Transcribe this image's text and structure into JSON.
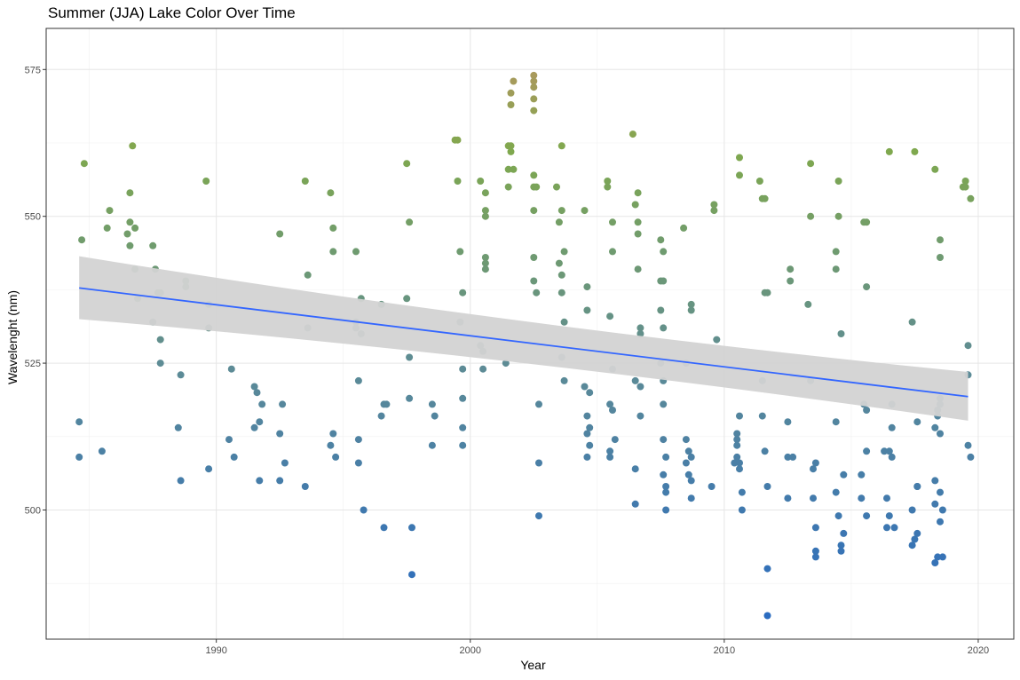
{
  "chart_data": {
    "type": "scatter",
    "title": "Summer (JJA) Lake Color Over Time",
    "xlabel": "Year",
    "ylabel": "Wavelenght (nm)",
    "xlim": [
      1983.3,
      2021.4
    ],
    "ylim": [
      478,
      582
    ],
    "x_ticks": [
      1990,
      2000,
      2010,
      2020
    ],
    "y_ticks": [
      500,
      525,
      550,
      575
    ],
    "grid": true,
    "trend": {
      "method": "linear",
      "x": [
        1984.6,
        2019.6
      ],
      "y": [
        537.8,
        519.3
      ],
      "ci_lower": [
        532.5,
        515.2
      ],
      "ci_upper": [
        543.2,
        523.5
      ],
      "line_color": "#3366FF",
      "band_color": "#D3D3D3"
    },
    "color_scale": {
      "low_value": 482,
      "low_color": "#2B6CC0",
      "mid_value": 525,
      "mid_color": "#5E8C95",
      "high_value": 561,
      "high_color": "#7FA84E",
      "top_value": 574,
      "top_color": "#A89A5C"
    },
    "points": [
      [
        1984.6,
        509
      ],
      [
        1984.6,
        515
      ],
      [
        1984.7,
        546
      ],
      [
        1984.8,
        559
      ],
      [
        1985.5,
        510
      ],
      [
        1985.7,
        548
      ],
      [
        1985.8,
        551
      ],
      [
        1986.5,
        547
      ],
      [
        1986.6,
        545
      ],
      [
        1986.6,
        549
      ],
      [
        1986.6,
        554
      ],
      [
        1986.7,
        562
      ],
      [
        1986.8,
        548
      ],
      [
        1986.8,
        541
      ],
      [
        1986.9,
        536
      ],
      [
        1987.5,
        532
      ],
      [
        1987.5,
        545
      ],
      [
        1987.6,
        541
      ],
      [
        1987.7,
        537
      ],
      [
        1987.8,
        537
      ],
      [
        1987.8,
        525
      ],
      [
        1987.8,
        529
      ],
      [
        1988.5,
        514
      ],
      [
        1988.6,
        505
      ],
      [
        1988.6,
        523
      ],
      [
        1988.8,
        539
      ],
      [
        1988.8,
        538
      ],
      [
        1989.6,
        556
      ],
      [
        1989.7,
        535
      ],
      [
        1989.7,
        531
      ],
      [
        1989.7,
        507
      ],
      [
        1990.5,
        512
      ],
      [
        1990.6,
        524
      ],
      [
        1990.7,
        509
      ],
      [
        1991.5,
        514
      ],
      [
        1991.5,
        521
      ],
      [
        1991.6,
        520
      ],
      [
        1991.7,
        505
      ],
      [
        1991.7,
        515
      ],
      [
        1991.8,
        518
      ],
      [
        1992.5,
        547
      ],
      [
        1992.5,
        513
      ],
      [
        1992.5,
        505
      ],
      [
        1992.6,
        518
      ],
      [
        1992.7,
        508
      ],
      [
        1993.5,
        556
      ],
      [
        1993.5,
        504
      ],
      [
        1993.6,
        531
      ],
      [
        1993.6,
        540
      ],
      [
        1994.5,
        554
      ],
      [
        1994.5,
        511
      ],
      [
        1994.6,
        544
      ],
      [
        1994.6,
        548
      ],
      [
        1994.6,
        513
      ],
      [
        1994.7,
        509
      ],
      [
        1995.5,
        544
      ],
      [
        1995.5,
        532
      ],
      [
        1995.5,
        531
      ],
      [
        1995.6,
        512
      ],
      [
        1995.6,
        508
      ],
      [
        1995.6,
        522
      ],
      [
        1995.7,
        530
      ],
      [
        1995.7,
        536
      ],
      [
        1995.8,
        500
      ],
      [
        1996.5,
        535
      ],
      [
        1996.5,
        516
      ],
      [
        1996.6,
        518
      ],
      [
        1996.6,
        497
      ],
      [
        1996.7,
        518
      ],
      [
        1997.5,
        536
      ],
      [
        1997.5,
        559
      ],
      [
        1997.6,
        526
      ],
      [
        1997.6,
        519
      ],
      [
        1997.6,
        549
      ],
      [
        1997.7,
        497
      ],
      [
        1997.7,
        489
      ],
      [
        1998.5,
        511
      ],
      [
        1998.5,
        518
      ],
      [
        1998.6,
        516
      ],
      [
        1999.4,
        563
      ],
      [
        1999.5,
        556
      ],
      [
        1999.5,
        563
      ],
      [
        1999.6,
        532
      ],
      [
        1999.6,
        544
      ],
      [
        1999.7,
        537
      ],
      [
        1999.7,
        524
      ],
      [
        1999.7,
        519
      ],
      [
        1999.7,
        511
      ],
      [
        1999.7,
        514
      ],
      [
        2000.4,
        556
      ],
      [
        2000.4,
        528
      ],
      [
        2000.5,
        527
      ],
      [
        2000.5,
        524
      ],
      [
        2000.6,
        551
      ],
      [
        2000.6,
        550
      ],
      [
        2000.6,
        543
      ],
      [
        2000.6,
        542
      ],
      [
        2000.6,
        541
      ],
      [
        2000.6,
        554
      ],
      [
        2001.4,
        525
      ],
      [
        2001.5,
        555
      ],
      [
        2001.5,
        558
      ],
      [
        2001.5,
        562
      ],
      [
        2001.6,
        561
      ],
      [
        2001.6,
        562
      ],
      [
        2001.6,
        569
      ],
      [
        2001.6,
        571
      ],
      [
        2001.7,
        573
      ],
      [
        2001.7,
        558
      ],
      [
        2002.5,
        574
      ],
      [
        2002.5,
        573
      ],
      [
        2002.5,
        572
      ],
      [
        2002.5,
        570
      ],
      [
        2002.5,
        568
      ],
      [
        2002.5,
        557
      ],
      [
        2002.5,
        555
      ],
      [
        2002.5,
        551
      ],
      [
        2002.5,
        543
      ],
      [
        2002.5,
        539
      ],
      [
        2002.6,
        537
      ],
      [
        2002.6,
        555
      ],
      [
        2002.7,
        518
      ],
      [
        2002.7,
        508
      ],
      [
        2002.7,
        499
      ],
      [
        2003.4,
        555
      ],
      [
        2003.5,
        549
      ],
      [
        2003.5,
        542
      ],
      [
        2003.6,
        562
      ],
      [
        2003.6,
        551
      ],
      [
        2003.6,
        540
      ],
      [
        2003.6,
        537
      ],
      [
        2003.6,
        526
      ],
      [
        2003.7,
        532
      ],
      [
        2003.7,
        522
      ],
      [
        2003.7,
        544
      ],
      [
        2004.5,
        551
      ],
      [
        2004.5,
        521
      ],
      [
        2004.6,
        538
      ],
      [
        2004.6,
        534
      ],
      [
        2004.6,
        516
      ],
      [
        2004.6,
        513
      ],
      [
        2004.6,
        509
      ],
      [
        2004.7,
        520
      ],
      [
        2004.7,
        514
      ],
      [
        2004.7,
        511
      ],
      [
        2005.4,
        556
      ],
      [
        2005.4,
        555
      ],
      [
        2005.5,
        533
      ],
      [
        2005.5,
        518
      ],
      [
        2005.5,
        510
      ],
      [
        2005.5,
        509
      ],
      [
        2005.6,
        549
      ],
      [
        2005.6,
        544
      ],
      [
        2005.6,
        524
      ],
      [
        2005.6,
        517
      ],
      [
        2005.7,
        512
      ],
      [
        2006.4,
        564
      ],
      [
        2006.5,
        552
      ],
      [
        2006.5,
        522
      ],
      [
        2006.5,
        507
      ],
      [
        2006.5,
        501
      ],
      [
        2006.6,
        554
      ],
      [
        2006.6,
        549
      ],
      [
        2006.6,
        547
      ],
      [
        2006.6,
        541
      ],
      [
        2006.7,
        531
      ],
      [
        2006.7,
        530
      ],
      [
        2006.7,
        521
      ],
      [
        2006.7,
        516
      ],
      [
        2007.5,
        546
      ],
      [
        2007.5,
        539
      ],
      [
        2007.5,
        534
      ],
      [
        2007.5,
        525
      ],
      [
        2007.6,
        544
      ],
      [
        2007.6,
        539
      ],
      [
        2007.6,
        531
      ],
      [
        2007.6,
        522
      ],
      [
        2007.6,
        518
      ],
      [
        2007.6,
        512
      ],
      [
        2007.6,
        506
      ],
      [
        2007.7,
        503
      ],
      [
        2007.7,
        500
      ],
      [
        2007.7,
        504
      ],
      [
        2007.7,
        509
      ],
      [
        2008.4,
        548
      ],
      [
        2008.5,
        525
      ],
      [
        2008.5,
        512
      ],
      [
        2008.5,
        508
      ],
      [
        2008.6,
        510
      ],
      [
        2008.6,
        506
      ],
      [
        2008.7,
        535
      ],
      [
        2008.7,
        534
      ],
      [
        2008.7,
        509
      ],
      [
        2008.7,
        505
      ],
      [
        2008.7,
        502
      ],
      [
        2009.5,
        504
      ],
      [
        2009.6,
        552
      ],
      [
        2009.6,
        551
      ],
      [
        2009.7,
        529
      ],
      [
        2010.4,
        508
      ],
      [
        2010.5,
        513
      ],
      [
        2010.5,
        512
      ],
      [
        2010.5,
        511
      ],
      [
        2010.5,
        509
      ],
      [
        2010.6,
        508
      ],
      [
        2010.6,
        557
      ],
      [
        2010.6,
        560
      ],
      [
        2010.6,
        516
      ],
      [
        2010.6,
        507
      ],
      [
        2010.7,
        503
      ],
      [
        2010.7,
        500
      ],
      [
        2011.4,
        556
      ],
      [
        2011.5,
        553
      ],
      [
        2011.5,
        522
      ],
      [
        2011.5,
        516
      ],
      [
        2011.6,
        553
      ],
      [
        2011.6,
        537
      ],
      [
        2011.6,
        510
      ],
      [
        2011.7,
        537
      ],
      [
        2011.7,
        504
      ],
      [
        2011.7,
        490
      ],
      [
        2011.7,
        482
      ],
      [
        2012.5,
        515
      ],
      [
        2012.5,
        502
      ],
      [
        2012.5,
        509
      ],
      [
        2012.6,
        541
      ],
      [
        2012.6,
        539
      ],
      [
        2012.7,
        509
      ],
      [
        2013.3,
        535
      ],
      [
        2013.4,
        559
      ],
      [
        2013.4,
        550
      ],
      [
        2013.4,
        522
      ],
      [
        2013.5,
        507
      ],
      [
        2013.5,
        502
      ],
      [
        2013.6,
        508
      ],
      [
        2013.6,
        497
      ],
      [
        2013.6,
        493
      ],
      [
        2013.6,
        492
      ],
      [
        2014.4,
        544
      ],
      [
        2014.4,
        541
      ],
      [
        2014.4,
        515
      ],
      [
        2014.4,
        503
      ],
      [
        2014.5,
        556
      ],
      [
        2014.5,
        550
      ],
      [
        2014.5,
        499
      ],
      [
        2014.6,
        530
      ],
      [
        2014.6,
        494
      ],
      [
        2014.6,
        493
      ],
      [
        2014.7,
        506
      ],
      [
        2014.7,
        496
      ],
      [
        2015.4,
        506
      ],
      [
        2015.4,
        502
      ],
      [
        2015.5,
        549
      ],
      [
        2015.5,
        518
      ],
      [
        2015.6,
        549
      ],
      [
        2015.6,
        538
      ],
      [
        2015.6,
        517
      ],
      [
        2015.6,
        510
      ],
      [
        2015.6,
        499
      ],
      [
        2016.3,
        510
      ],
      [
        2016.4,
        502
      ],
      [
        2016.4,
        497
      ],
      [
        2016.5,
        510
      ],
      [
        2016.5,
        499
      ],
      [
        2016.5,
        561
      ],
      [
        2016.6,
        518
      ],
      [
        2016.6,
        514
      ],
      [
        2016.6,
        509
      ],
      [
        2016.7,
        497
      ],
      [
        2017.4,
        532
      ],
      [
        2017.4,
        500
      ],
      [
        2017.4,
        494
      ],
      [
        2017.5,
        561
      ],
      [
        2017.5,
        495
      ],
      [
        2017.6,
        504
      ],
      [
        2017.6,
        515
      ],
      [
        2017.6,
        504
      ],
      [
        2017.6,
        496
      ],
      [
        2018.3,
        558
      ],
      [
        2018.3,
        514
      ],
      [
        2018.3,
        505
      ],
      [
        2018.3,
        501
      ],
      [
        2018.3,
        491
      ],
      [
        2018.4,
        517
      ],
      [
        2018.4,
        516
      ],
      [
        2018.4,
        492
      ],
      [
        2018.5,
        546
      ],
      [
        2018.5,
        543
      ],
      [
        2018.5,
        519
      ],
      [
        2018.5,
        518
      ],
      [
        2018.5,
        513
      ],
      [
        2018.5,
        503
      ],
      [
        2018.5,
        498
      ],
      [
        2018.6,
        500
      ],
      [
        2018.6,
        492
      ],
      [
        2019.4,
        555
      ],
      [
        2019.5,
        555
      ],
      [
        2019.5,
        556
      ],
      [
        2019.6,
        523
      ],
      [
        2019.6,
        528
      ],
      [
        2019.6,
        511
      ],
      [
        2019.7,
        553
      ],
      [
        2019.7,
        509
      ]
    ]
  }
}
